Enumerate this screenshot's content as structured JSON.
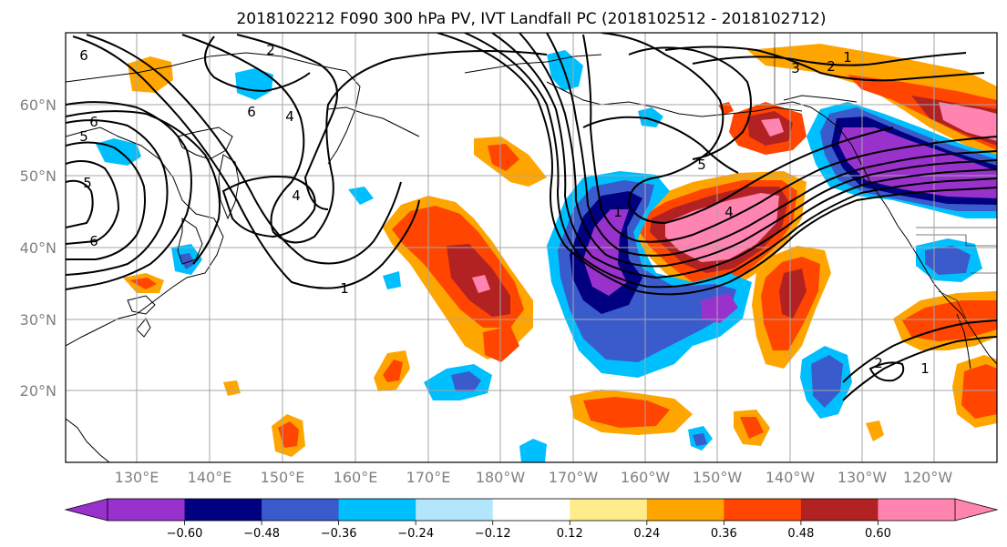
{
  "title": "2018102212 F090 300 hPa PV, IVT Landfall PC (2018102512 - 2018102712)",
  "lat_labels": [
    "60°N",
    "50°N",
    "40°N",
    "30°N",
    "20°N"
  ],
  "lon_labels": [
    "130°E",
    "140°E",
    "150°E",
    "160°E",
    "170°E",
    "180°W",
    "170°W",
    "160°W",
    "150°W",
    "140°W",
    "130°W",
    "120°W"
  ],
  "colorbar": {
    "colors": [
      "#9932cc",
      "#000080",
      "#3a5bcc",
      "#00bfff",
      "#b3e5fc",
      "#ffffff",
      "#ffec8b",
      "#ffa500",
      "#ff4500",
      "#b22222",
      "#ff85b0"
    ],
    "tick_labels": [
      "−0.60",
      "−0.48",
      "−0.36",
      "−0.24",
      "−0.12",
      "0.12",
      "0.24",
      "0.36",
      "0.48",
      "0.60"
    ]
  },
  "contour_labels": [
    "2",
    "6",
    "6",
    "5",
    "5",
    "6",
    "4",
    "6",
    "4",
    "1",
    "3",
    "2",
    "1",
    "5",
    "4",
    "1",
    "2",
    "1"
  ]
}
